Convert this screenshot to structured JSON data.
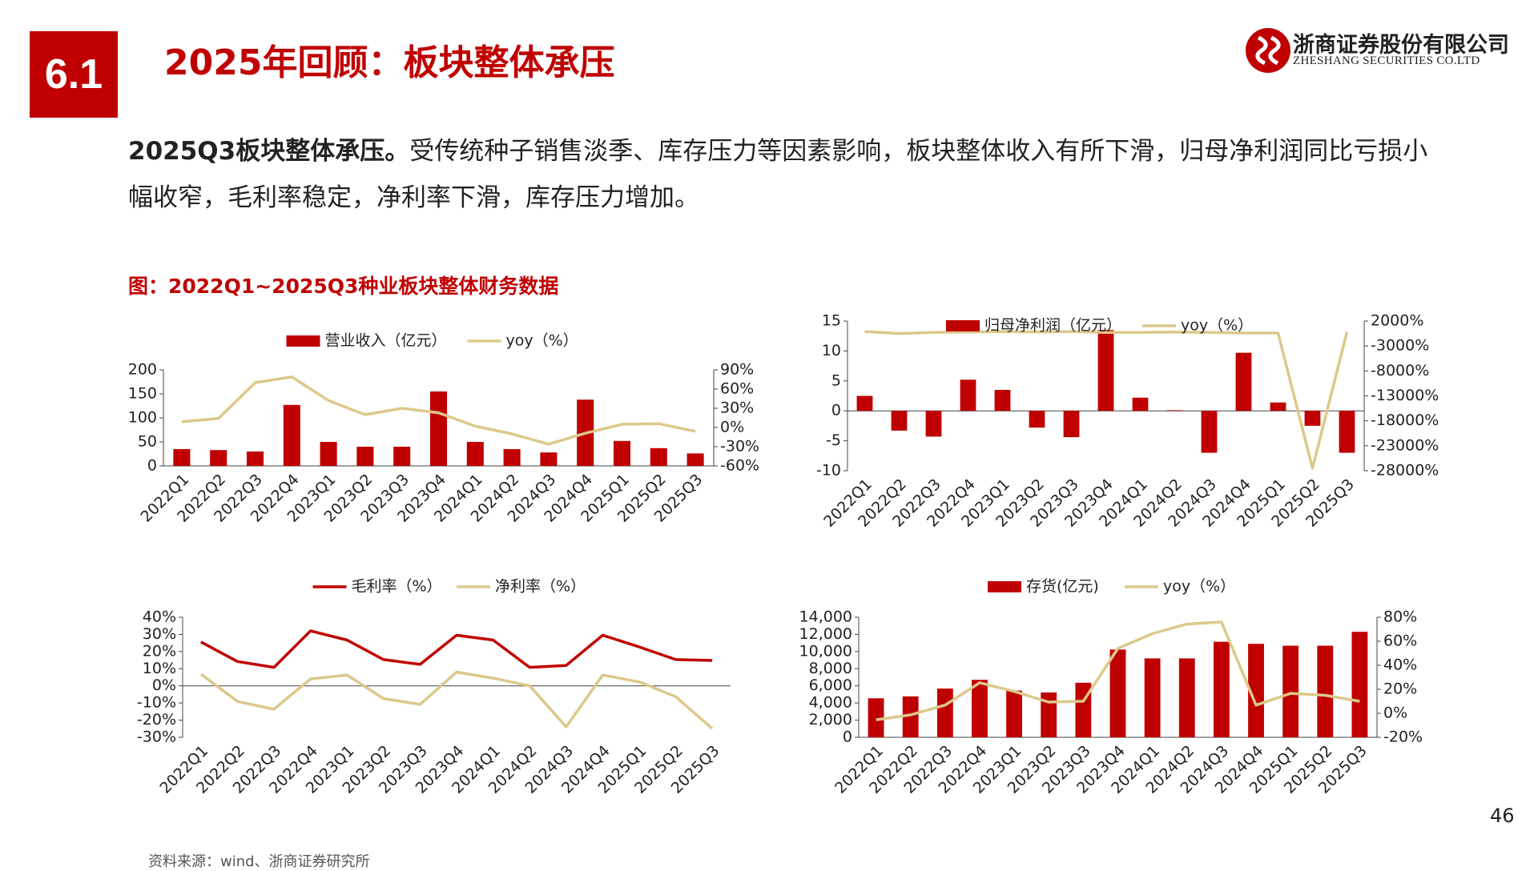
{
  "header": {
    "section": "6.1",
    "title": "2025年回顾：板块整体承压",
    "company_cn": "浙商证券股份有限公司",
    "company_en": "ZHESHANG SECURITIES CO.LTD"
  },
  "body": {
    "lead": "2025Q3板块整体承压。",
    "text": "受传统种子销售淡季、库存压力等因素影响，板块整体收入有所下滑，归母净利润同比亏损小幅收窄，毛利率稳定，净利率下滑，库存压力增加。"
  },
  "figure_title": "图：2022Q1~2025Q3种业板块整体财务数据",
  "chart_data": [
    {
      "type": "bar",
      "categories": [
        "2022Q1",
        "2022Q2",
        "2022Q3",
        "2022Q4",
        "2023Q1",
        "2023Q2",
        "2023Q3",
        "2023Q4",
        "2024Q1",
        "2024Q2",
        "2024Q3",
        "2024Q4",
        "2025Q1",
        "2025Q2",
        "2025Q3"
      ],
      "series": [
        {
          "name": "营业收入（亿元）",
          "color": "#c00000",
          "values": [
            35,
            33,
            30,
            127,
            50,
            40,
            40,
            155,
            50,
            35,
            28,
            138,
            52,
            37,
            26
          ]
        },
        {
          "name": "yoy（%）",
          "type": "line",
          "axis": "y2",
          "color": "#dcc88a",
          "values": [
            9,
            14,
            70,
            79,
            42,
            20,
            30,
            23,
            2,
            -10,
            -26,
            -9,
            5,
            6,
            -6
          ]
        }
      ],
      "ylim": [
        0,
        200
      ],
      "yticks": [
        0,
        50,
        100,
        150,
        200
      ],
      "y2lim": [
        -60,
        90
      ],
      "y2ticks": [
        {
          "value": -60,
          "label": "-60%"
        },
        {
          "value": -30,
          "label": "-30%"
        },
        {
          "value": 0,
          "label": "0%"
        },
        {
          "value": 30,
          "label": "30%"
        },
        {
          "value": 60,
          "label": "60%"
        },
        {
          "value": 90,
          "label": "90%"
        }
      ],
      "legend": "top"
    },
    {
      "type": "bar",
      "categories": [
        "2022Q1",
        "2022Q2",
        "2022Q3",
        "2022Q4",
        "2023Q1",
        "2023Q2",
        "2023Q3",
        "2023Q4",
        "2024Q1",
        "2024Q2",
        "2024Q3",
        "2024Q4",
        "2025Q1",
        "2025Q2",
        "2025Q3"
      ],
      "series": [
        {
          "name": "归母净利润（亿元）",
          "color": "#c00000",
          "values": [
            2.5,
            -3.3,
            -4.3,
            5.2,
            3.5,
            -2.8,
            -4.4,
            13.5,
            2.2,
            0.1,
            -7,
            9.7,
            1.4,
            -2.5,
            -7
          ]
        },
        {
          "name": "yoy（%）",
          "type": "line",
          "axis": "y2",
          "color": "#dcc88a",
          "values": [
            -100,
            -500,
            -300,
            -200,
            -100,
            -200,
            -100,
            -300,
            -300,
            -200,
            -300,
            -400,
            -400,
            -27500,
            -200
          ]
        }
      ],
      "ylim": [
        -10,
        15
      ],
      "yticks": [
        -10,
        -5,
        0,
        5,
        10,
        15
      ],
      "y2lim": [
        -28000,
        2000
      ],
      "y2ticks": [
        {
          "value": -28000,
          "label": "-28000%"
        },
        {
          "value": -23000,
          "label": "-23000%"
        },
        {
          "value": -18000,
          "label": "-18000%"
        },
        {
          "value": -13000,
          "label": "-13000%"
        },
        {
          "value": -8000,
          "label": "-8000%"
        },
        {
          "value": -3000,
          "label": "-3000%"
        },
        {
          "value": 2000,
          "label": "2000%"
        }
      ],
      "legend": "top"
    },
    {
      "type": "line",
      "categories": [
        "2022Q1",
        "2022Q2",
        "2022Q3",
        "2022Q4",
        "2023Q1",
        "2023Q2",
        "2023Q3",
        "2023Q4",
        "2024Q1",
        "2024Q2",
        "2024Q3",
        "2024Q4",
        "2025Q1",
        "2025Q2",
        "2025Q3"
      ],
      "series": [
        {
          "name": "毛利率（%）",
          "color": "#c00000",
          "values": [
            25.6,
            14.2,
            10.8,
            32,
            26.7,
            15.3,
            12.5,
            29.5,
            26.7,
            10.8,
            11.9,
            29.5,
            22.7,
            15.3,
            14.8
          ]
        },
        {
          "name": "净利率（%）",
          "color": "#dcc88a",
          "values": [
            6.8,
            -9.1,
            -13.6,
            4,
            6.3,
            -7.4,
            -10.8,
            8,
            4.5,
            0,
            -23.9,
            6.3,
            2.3,
            -6.3,
            -25
          ]
        }
      ],
      "ylim": [
        -30,
        40
      ],
      "yticks": [
        {
          "value": -30,
          "label": "-30%"
        },
        {
          "value": -20,
          "label": "-20%"
        },
        {
          "value": -10,
          "label": "-10%"
        },
        {
          "value": 0,
          "label": "0%"
        },
        {
          "value": 10,
          "label": "10%"
        },
        {
          "value": 20,
          "label": "20%"
        },
        {
          "value": 30,
          "label": "30%"
        },
        {
          "value": 40,
          "label": "40%"
        }
      ],
      "legend": "top"
    },
    {
      "type": "bar",
      "categories": [
        "2022Q1",
        "2022Q2",
        "2022Q3",
        "2022Q4",
        "2023Q1",
        "2023Q2",
        "2023Q3",
        "2023Q4",
        "2024Q1",
        "2024Q2",
        "2024Q3",
        "2024Q4",
        "2025Q1",
        "2025Q2",
        "2025Q3"
      ],
      "series": [
        {
          "name": "存货(亿元)",
          "color": "#c00000",
          "values": [
            4550,
            4770,
            5680,
            6700,
            5450,
            5230,
            6360,
            10230,
            9200,
            9200,
            11140,
            10900,
            10680,
            10680,
            12300
          ]
        },
        {
          "name": "yoy（%）",
          "type": "line",
          "axis": "y2",
          "color": "#dcc88a",
          "values": [
            -5.4,
            -1.3,
            6.8,
            25.5,
            18.2,
            9.3,
            10.1,
            54,
            66.3,
            74.3,
            76,
            6.8,
            16.6,
            15,
            10
          ]
        }
      ],
      "ylim": [
        0,
        14000
      ],
      "yticks": [
        0,
        {
          "value": 2000,
          "label": "2,000"
        },
        {
          "value": 4000,
          "label": "4,000"
        },
        {
          "value": 6000,
          "label": "6,000"
        },
        {
          "value": 8000,
          "label": "8,000"
        },
        {
          "value": 10000,
          "label": "10,000"
        },
        {
          "value": 12000,
          "label": "12,000"
        },
        {
          "value": 14000,
          "label": "14,000"
        }
      ],
      "y2lim": [
        -20,
        80
      ],
      "y2ticks": [
        {
          "value": -20,
          "label": "-20%"
        },
        {
          "value": 0,
          "label": "0%"
        },
        {
          "value": 20,
          "label": "20%"
        },
        {
          "value": 40,
          "label": "40%"
        },
        {
          "value": 60,
          "label": "60%"
        },
        {
          "value": 80,
          "label": "80%"
        }
      ],
      "legend": "top"
    }
  ],
  "source": "资料来源：wind、浙商证券研究所",
  "page_number": "46"
}
